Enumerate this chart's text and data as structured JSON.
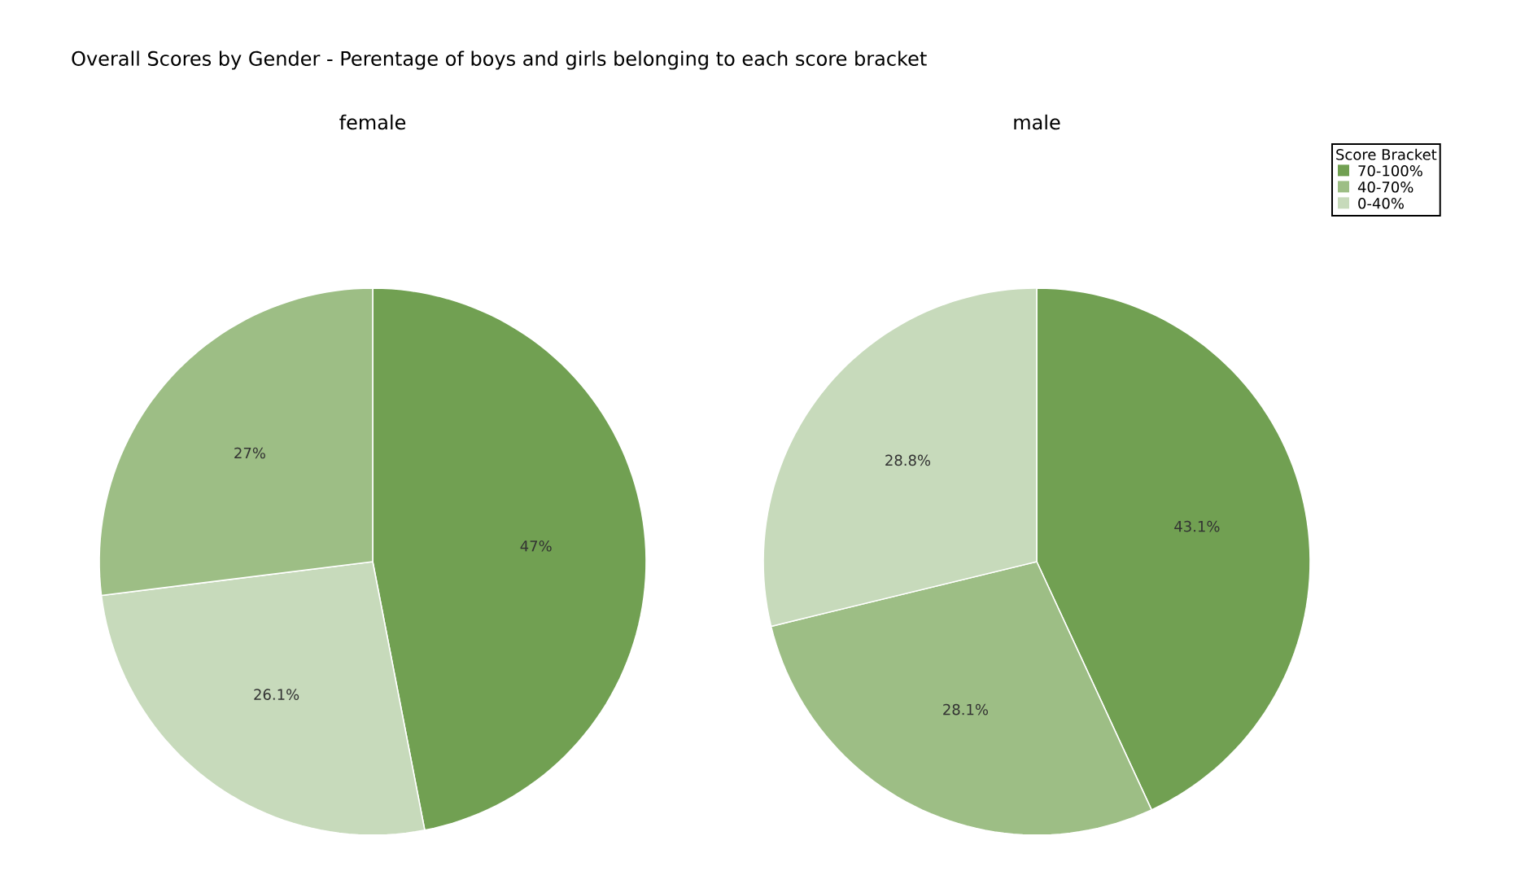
{
  "chart_data": [
    {
      "type": "pie",
      "title": "Overall Scores by Gender - Perentage of boys and girls belonging to each score bracket",
      "subtitle": "female",
      "categories": [
        null,
        null,
        null
      ],
      "values": [
        47,
        26.1,
        27
      ],
      "value_labels": [
        "47%",
        "26.1%",
        "27%"
      ],
      "colors": [
        "#71a052",
        "#c7dabb",
        "#9dbe85"
      ]
    },
    {
      "type": "pie",
      "subtitle": "male",
      "legend": "top right",
      "legend_title": "Score Bracket",
      "categories": [
        "70-100%",
        "40-70%",
        "0-40%"
      ],
      "values": [
        43.1,
        28.1,
        28.8
      ],
      "value_labels": [
        "43.1%",
        "28.1%",
        "28.8%"
      ],
      "colors": [
        "#71a052",
        "#9dbe85",
        "#c7dabb"
      ]
    }
  ]
}
